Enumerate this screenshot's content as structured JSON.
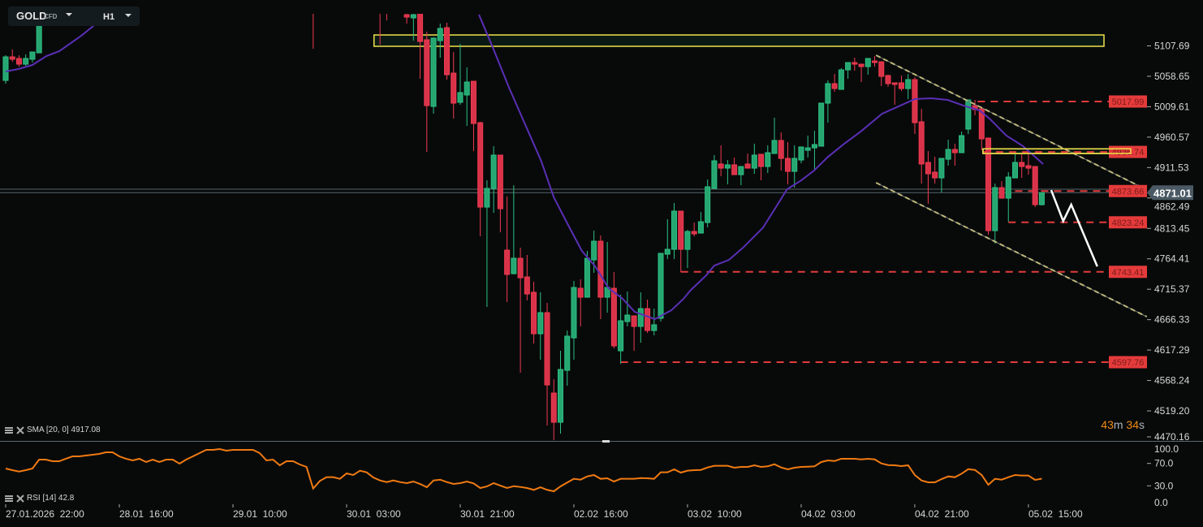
{
  "header": {
    "symbol": "GOLD",
    "instrument_type": "CFD",
    "timeframe": "H1"
  },
  "timer": {
    "minutes": "43",
    "m": "m",
    "seconds": "34",
    "s": "s"
  },
  "colors": {
    "up": "#26a671",
    "down": "#d9334a",
    "sma": "#5a2fb5",
    "rsi": "#f07a12",
    "level": "#e23b3b",
    "zone": "#efe24a",
    "channel": "#bdb77a",
    "projection": "#ffffff",
    "price_tag": "#4a5963",
    "background": "#080a0a"
  },
  "chart_data": {
    "type": "candlestick",
    "ylim": [
      4470.8,
      5159.4
    ],
    "y_ticks": [
      "5107.69",
      "5058.65",
      "5009.61",
      "4960.57",
      "4911.53",
      "4862.49",
      "4813.45",
      "4764.41",
      "4715.37",
      "4666.33",
      "4617.29",
      "4568.24",
      "4519.20",
      "4470.16"
    ],
    "x_ticks": [
      {
        "label": "27.01.2026  22:00",
        "index": 0
      },
      {
        "label": "28.01  16:00",
        "index": 17
      },
      {
        "label": "29.01  10:00",
        "index": 34
      },
      {
        "label": "30.01  03:00",
        "index": 51
      },
      {
        "label": "30.01  21:00",
        "index": 68
      },
      {
        "label": "02.02  16:00",
        "index": 85
      },
      {
        "label": "03.02  10:00",
        "index": 102
      },
      {
        "label": "04.02  03:00",
        "index": 119
      },
      {
        "label": "04.02  21:00",
        "index": 136
      },
      {
        "label": "05.02  15:00",
        "index": 153
      }
    ],
    "candles_format": [
      "open",
      "high",
      "low",
      "close"
    ],
    "candles": [
      [
        5052.0,
        5092.6,
        5046.8,
        5090.0
      ],
      [
        5090.0,
        5101.8,
        5082.1,
        5086.1
      ],
      [
        5087.4,
        5092.6,
        5074.3,
        5078.2
      ],
      [
        5078.2,
        5093.9,
        5075.6,
        5087.4
      ],
      [
        5086.1,
        5097.8,
        5080.8,
        5097.8
      ],
      [
        5096.5,
        5162.0,
        5096.5,
        5158.0
      ],
      null,
      null,
      null,
      null,
      null,
      null,
      null,
      null,
      null,
      null,
      null,
      null,
      null,
      null,
      null,
      null,
      null,
      null,
      null,
      null,
      null,
      null,
      null,
      null,
      null,
      null,
      null,
      null,
      null,
      null,
      null,
      null,
      null,
      null,
      null,
      null,
      null,
      null,
      null,
      null,
      [
        5205.0,
        5220.0,
        5103.1,
        5185.0
      ],
      null,
      null,
      null,
      null,
      null,
      null,
      null,
      null,
      null,
      [
        5200.0,
        5215.0,
        5109.6,
        5180.0
      ],
      [
        5195.0,
        5205.0,
        5148.9,
        5175.0
      ],
      null,
      null,
      [
        5158.0,
        5168.5,
        5143.6,
        5154.1
      ],
      [
        5152.8,
        5165.9,
        5116.2,
        5158.0
      ],
      [
        5162.0,
        5165.0,
        5054.6,
        5114.8
      ],
      [
        5117.5,
        5130.6,
        4936.8,
        5011.4
      ],
      [
        5010.1,
        5121.4,
        4998.4,
        5120.1
      ],
      [
        5116.2,
        5143.6,
        5088.7,
        5135.8
      ],
      [
        5137.1,
        5145.0,
        5053.3,
        5061.2
      ],
      [
        5063.8,
        5097.8,
        4990.5,
        5015.4
      ],
      [
        5016.7,
        5110.9,
        5012.8,
        5032.4
      ],
      [
        5028.5,
        5073.0,
        4978.7,
        5049.4
      ],
      [
        5050.7,
        5050.7,
        4938.1,
        4982.6
      ],
      [
        4983.9,
        4985.3,
        4800.7,
        4847.8
      ],
      [
        4847.8,
        4891.0,
        4686.8,
        4877.9
      ],
      [
        4877.9,
        4946.0,
        4838.6,
        4931.6
      ],
      [
        4931.6,
        4931.6,
        4807.2,
        4845.2
      ],
      [
        4778.4,
        4864.8,
        4694.6,
        4739.2
      ],
      [
        4740.5,
        4883.1,
        4739.2,
        4765.3
      ],
      [
        4765.3,
        4782.3,
        4580.7,
        4733.9
      ],
      [
        4735.2,
        4770.6,
        4697.3,
        4707.7
      ],
      [
        4710.4,
        4727.4,
        4627.9,
        4643.6
      ],
      [
        4643.6,
        4710.4,
        4601.7,
        4677.6
      ],
      [
        4677.6,
        4693.3,
        4495.6,
        4561.1
      ],
      [
        4548.0,
        4570.3,
        4472.0,
        4500.9
      ],
      [
        4500.9,
        4616.1,
        4482.5,
        4586.0
      ],
      [
        4584.6,
        4648.8,
        4559.8,
        4639.7
      ],
      [
        4637.0,
        4728.7,
        4601.7,
        4718.2
      ],
      [
        4716.9,
        4731.3,
        4655.4,
        4702.5
      ],
      [
        4702.5,
        4777.1,
        4702.5,
        4765.3
      ],
      [
        4762.7,
        4809.8,
        4741.8,
        4792.8
      ],
      [
        4792.8,
        4802.0,
        4667.2,
        4702.5
      ],
      [
        4702.5,
        4791.5,
        4677.6,
        4718.2
      ],
      [
        4716.9,
        4743.1,
        4620.0,
        4624.0
      ],
      [
        4616.1,
        4706.4,
        4595.1,
        4664.5
      ],
      [
        4663.2,
        4711.7,
        4655.4,
        4673.7
      ],
      [
        4672.4,
        4672.4,
        4616.1,
        4655.4
      ],
      [
        4655.4,
        4710.4,
        4629.2,
        4684.1
      ],
      [
        4684.1,
        4698.6,
        4644.9,
        4648.8
      ],
      [
        4648.8,
        4684.1,
        4641.0,
        4658.0
      ],
      [
        4668.5,
        4773.2,
        4663.2,
        4773.2
      ],
      [
        4771.9,
        4828.1,
        4764.0,
        4779.7
      ],
      [
        4779.7,
        4854.4,
        4764.0,
        4841.3
      ],
      [
        4841.3,
        4841.3,
        4743.1,
        4779.7
      ],
      [
        4779.7,
        4811.2,
        4749.6,
        4808.5
      ],
      [
        4808.5,
        4822.9,
        4800.7,
        4804.6
      ],
      [
        4805.9,
        4839.9,
        4805.9,
        4824.2
      ],
      [
        4822.9,
        4892.3,
        4815.1,
        4880.5
      ],
      [
        4877.9,
        4931.6,
        4877.9,
        4922.4
      ],
      [
        4917.2,
        4947.3,
        4897.5,
        4910.6
      ],
      [
        4910.6,
        4923.7,
        4884.4,
        4915.9
      ],
      [
        4915.9,
        4927.6,
        4900.1,
        4900.1
      ],
      [
        4900.1,
        4913.2,
        4883.1,
        4913.2
      ],
      [
        4917.2,
        4934.2,
        4910.6,
        4910.6
      ],
      [
        4910.6,
        4949.9,
        4901.5,
        4931.6
      ],
      [
        4932.9,
        4932.9,
        4891.0,
        4913.2
      ],
      [
        4913.2,
        4947.3,
        4902.8,
        4935.5
      ],
      [
        4934.2,
        4991.8,
        4934.2,
        4955.2
      ],
      [
        4955.2,
        4968.2,
        4906.7,
        4926.3
      ],
      [
        4926.3,
        4952.5,
        4884.4,
        4905.4
      ],
      [
        4905.4,
        4947.3,
        4879.2,
        4926.3
      ],
      [
        4923.7,
        4944.7,
        4918.5,
        4944.7
      ],
      [
        4939.4,
        4963.0,
        4927.6,
        4943.3
      ],
      [
        4943.3,
        4970.8,
        4909.3,
        4948.6
      ],
      [
        4946.0,
        5015.4,
        4946.0,
        5015.4
      ],
      [
        5015.4,
        5052.0,
        4983.9,
        5046.8
      ],
      [
        5046.8,
        5062.5,
        5033.7,
        5038.9
      ],
      [
        5037.6,
        5071.7,
        5037.6,
        5069.0
      ],
      [
        5069.0,
        5080.8,
        5054.6,
        5080.8
      ],
      [
        5080.8,
        5088.7,
        5067.7,
        5078.2
      ],
      [
        5078.2,
        5078.2,
        5049.4,
        5074.3
      ],
      [
        5074.3,
        5087.4,
        5061.2,
        5087.4
      ],
      [
        5083.4,
        5091.3,
        5074.3,
        5080.8
      ],
      [
        5082.1,
        5082.1,
        5042.9,
        5058.5
      ],
      [
        5059.9,
        5061.2,
        5041.6,
        5046.8
      ],
      [
        5048.1,
        5048.1,
        5012.8,
        5045.5
      ],
      [
        5048.1,
        5059.9,
        5035.0,
        5038.9
      ],
      [
        5038.9,
        5062.5,
        5021.9,
        5053.3
      ],
      [
        5053.3,
        5057.2,
        4965.6,
        4983.9
      ],
      [
        4985.3,
        5006.2,
        4885.7,
        4917.2
      ],
      [
        4919.8,
        4938.1,
        4853.0,
        4901.5
      ],
      [
        4904.1,
        4928.9,
        4885.7,
        4894.9
      ],
      [
        4894.9,
        4926.3,
        4871.4,
        4926.3
      ],
      [
        4925.0,
        4956.5,
        4914.6,
        4940.7
      ],
      [
        4940.7,
        4949.9,
        4914.6,
        4935.5
      ],
      [
        4935.5,
        4969.5,
        4935.5,
        4963.0
      ],
      [
        4973.5,
        5020.6,
        4965.6,
        5020.6
      ],
      [
        5011.4,
        5020.6,
        4995.7,
        5004.9
      ],
      [
        5006.2,
        5006.2,
        4939.4,
        4957.8
      ],
      [
        4959.1,
        4959.1,
        4803.3,
        4809.8
      ],
      [
        4809.8,
        4885.7,
        4788.9,
        4879.2
      ],
      [
        4879.2,
        4889.7,
        4862.2,
        4862.2
      ],
      [
        4862.2,
        4904.1,
        4824.2,
        4896.2
      ],
      [
        4894.9,
        4932.9,
        4894.9,
        4919.8
      ],
      [
        4919.8,
        4932.9,
        4894.9,
        4913.2
      ],
      [
        4914.6,
        4935.5,
        4900.1,
        4910.6
      ],
      [
        4913.2,
        4913.2,
        4847.8,
        4851.7
      ],
      [
        4851.7,
        4871.4,
        4850.4,
        4871.0
      ]
    ],
    "current_price": {
      "bid": 4871.01,
      "label": "4871.01",
      "ask": 4876.6
    },
    "sma": {
      "label": "SMA [20, 0] 4917.08",
      "segments": [
        [
          [
            0,
            5066.4
          ],
          [
            1.9,
            5070.4
          ],
          [
            4,
            5076.9
          ],
          [
            6.1,
            5091.3
          ],
          [
            8,
            5099.1
          ],
          [
            11.3,
            5124.0
          ],
          [
            13.1,
            5139.7
          ],
          [
            14.3,
            5159.4
          ]
        ],
        [
          [
            70.8,
            5158.0
          ],
          [
            72.9,
            5104.4
          ],
          [
            75.3,
            5040.3
          ],
          [
            80.1,
            4922.4
          ],
          [
            82,
            4863.5
          ],
          [
            84.2,
            4817.7
          ],
          [
            86.2,
            4777.1
          ],
          [
            88.2,
            4752.2
          ],
          [
            90.2,
            4716.9
          ],
          [
            92.3,
            4699.9
          ],
          [
            94.1,
            4678.9
          ],
          [
            97.1,
            4667.2
          ],
          [
            99.6,
            4681.6
          ],
          [
            101.4,
            4699.9
          ],
          [
            102.4,
            4713.0
          ],
          [
            104.8,
            4737.8
          ],
          [
            106,
            4753.5
          ],
          [
            108.2,
            4762.7
          ],
          [
            110.3,
            4782.3
          ],
          [
            113.3,
            4814.7
          ],
          [
            116.9,
            4876.6
          ],
          [
            119,
            4890.8
          ],
          [
            120.9,
            4906.4
          ],
          [
            123,
            4928.6
          ],
          [
            125.4,
            4949.5
          ],
          [
            127.9,
            4969.5
          ],
          [
            131.1,
            4998.3
          ],
          [
            136,
            5021.9
          ],
          [
            138.4,
            5023.2
          ],
          [
            140.9,
            5020.6
          ],
          [
            143.3,
            5011.4
          ],
          [
            145.7,
            5003.6
          ],
          [
            147.3,
            4989.2
          ],
          [
            149.7,
            4963.0
          ],
          [
            152.2,
            4946.0
          ],
          [
            155.2,
            4917.2
          ]
        ]
      ]
    },
    "rsi": {
      "label": "RSI [14] 42.8",
      "ylim": [
        0,
        100
      ],
      "ticks": [
        {
          "label": "100.0",
          "value": 100
        },
        {
          "label": "70.0",
          "value": 70
        },
        {
          "label": "30.0",
          "value": 30
        },
        {
          "label": "0.0",
          "value": 0
        }
      ],
      "values": [
        60.9,
        58.0,
        55.5,
        58.0,
        60.9,
        76.8,
        76.8,
        73.9,
        73.9,
        78.3,
        82.6,
        82.6,
        84.1,
        85.5,
        87.0,
        89.9,
        89.9,
        82.6,
        78.3,
        75.4,
        78.3,
        72.5,
        76.8,
        72.5,
        76.8,
        76.8,
        69.6,
        76.8,
        82.6,
        88.4,
        94.2,
        94.2,
        95.7,
        92.8,
        94.2,
        94.2,
        94.2,
        94.2,
        88.4,
        75.4,
        76.8,
        66.7,
        73.9,
        73.9,
        68.1,
        63.8,
        25.1,
        38.7,
        45.4,
        45.4,
        42.5,
        52.2,
        49.3,
        57.0,
        54.1,
        44.9,
        39.6,
        36.7,
        39.6,
        36.7,
        34.8,
        37.7,
        33.3,
        27.5,
        39.6,
        41.0,
        36.7,
        33.3,
        34.8,
        37.7,
        34.3,
        26.1,
        29.0,
        34.8,
        30.4,
        26.1,
        29.4,
        28.0,
        26.1,
        22.8,
        27.5,
        22.8,
        20.3,
        29.0,
        35.8,
        42.5,
        41.0,
        46.8,
        49.3,
        42.5,
        43.5,
        37.7,
        42.5,
        42.5,
        42.5,
        43.9,
        43.5,
        42.5,
        54.1,
        54.1,
        59.4,
        53.6,
        57.0,
        58.0,
        58.4,
        62.8,
        65.7,
        65.7,
        65.7,
        62.3,
        63.8,
        63.8,
        66.7,
        63.8,
        64.8,
        68.6,
        62.8,
        59.4,
        62.3,
        63.8,
        64.2,
        64.8,
        72.5,
        75.4,
        74.3,
        78.3,
        78.3,
        78.3,
        77.2,
        78.3,
        77.2,
        70.0,
        67.1,
        66.7,
        65.2,
        66.7,
        49.3,
        39.6,
        36.2,
        36.2,
        42.0,
        46.8,
        45.4,
        51.7,
        59.8,
        58.4,
        49.3,
        31.9,
        42.5,
        41.0,
        45.4,
        49.3,
        48.3,
        48.3,
        40.6,
        42.8
      ]
    },
    "levels": [
      {
        "price": 5017.99,
        "label": "5017.99",
        "from_index": 145.4
      },
      {
        "price": 4936.74,
        "label": "4936.74",
        "from_index": 146.2
      },
      {
        "price": 4873.66,
        "label": "4873.66",
        "from_index": 151
      },
      {
        "price": 4823.24,
        "label": "4823.24",
        "from_index": 150
      },
      {
        "price": 4743.41,
        "label": "4743.41",
        "from_index": 101
      },
      {
        "price": 4597.76,
        "label": "4597.76",
        "from_index": 92
      }
    ],
    "zones": [
      {
        "from_index": 55.1,
        "to_index": 164.3,
        "top": 5125.3,
        "bottom": 5107.0
      },
      {
        "from_index": 146.2,
        "to_index": 168.3,
        "top": 4941.7,
        "bottom": 4934.2
      }
    ],
    "channel": [
      [
        [
          130.2,
          5092.6
        ],
        [
          169.8,
          4880.5
        ]
      ],
      [
        [
          130.2,
          4887.1
        ],
        [
          170.7,
          4671.1
        ]
      ]
    ],
    "projection": [
      [
        156.4,
        4875.3
      ],
      [
        158.2,
        4825.2
      ],
      [
        159.4,
        4851.7
      ],
      [
        163.3,
        4752.1
      ]
    ]
  }
}
